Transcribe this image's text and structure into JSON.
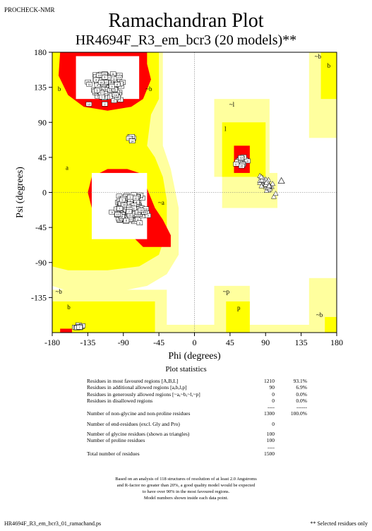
{
  "header": {
    "app_tag": "PROCHECK-NMR",
    "title": "Ramachandran Plot",
    "subtitle": "HR4694F_R3_em_bcr3 (20 models)**"
  },
  "colors": {
    "most_favoured": "#ff0000",
    "additional_allowed": "#ffff00",
    "generously_allowed": "#ffff9e",
    "background": "#ffffff"
  },
  "chart_data": {
    "type": "scatter",
    "xlabel": "Phi (degrees)",
    "ylabel": "Psi (degrees)",
    "xlim": [
      -180,
      180
    ],
    "ylim": [
      -180,
      180
    ],
    "x_ticks": [
      -180,
      -135,
      -90,
      -45,
      0,
      45,
      90,
      135,
      180
    ],
    "y_ticks": [
      180,
      135,
      90,
      45,
      0,
      -45,
      -90,
      -135
    ],
    "region_labels": [
      {
        "text": "b",
        "phi": -173,
        "psi": 130
      },
      {
        "text": "~b",
        "phi": -62,
        "psi": 130
      },
      {
        "text": "~b",
        "phi": 152,
        "psi": 172
      },
      {
        "text": "b",
        "phi": 168,
        "psi": 160
      },
      {
        "text": "~l",
        "phi": 44,
        "psi": 110
      },
      {
        "text": "l",
        "phi": 38,
        "psi": 79
      },
      {
        "text": "a",
        "phi": -163,
        "psi": 29
      },
      {
        "text": "~a",
        "phi": -46,
        "psi": -16
      },
      {
        "text": "~b",
        "phi": -176,
        "psi": -130
      },
      {
        "text": "b",
        "phi": -161,
        "psi": -150
      },
      {
        "text": "~p",
        "phi": 36,
        "psi": -130
      },
      {
        "text": "p",
        "phi": 54,
        "psi": -151
      },
      {
        "text": "~b",
        "phi": 154,
        "psi": -160
      }
    ],
    "clusters": [
      {
        "name": "beta",
        "center_phi": -112,
        "center_psi": 135,
        "spread_phi": 26,
        "spread_psi": 25,
        "count": 110
      },
      {
        "name": "alpha",
        "center_phi": -82,
        "center_psi": -22,
        "spread_phi": 26,
        "spread_psi": 22,
        "count": 150
      },
      {
        "name": "bridge",
        "center_phi": -80,
        "center_psi": 68,
        "spread_phi": 9,
        "spread_psi": 6,
        "count": 6
      },
      {
        "name": "left-handed",
        "center_phi": 60,
        "center_psi": 40,
        "spread_phi": 10,
        "spread_psi": 9,
        "count": 18
      },
      {
        "name": "bottom",
        "center_phi": -146,
        "center_psi": -172,
        "spread_phi": 10,
        "spread_psi": 3,
        "count": 10
      }
    ],
    "glycine_triangles": {
      "center_phi": 92,
      "center_psi": 10,
      "spread_phi": 14,
      "spread_psi": 12,
      "count": 40
    },
    "triangle_outlier": {
      "phi": 110,
      "psi": 15
    }
  },
  "statistics": {
    "title": "Plot statistics",
    "rows": [
      {
        "label": "Residues in most favoured regions  [A,B,L]",
        "count": "1210",
        "percent": "93.1%"
      },
      {
        "label": "Residues in additional allowed regions  [a,b,l,p]",
        "count": "90",
        "percent": "6.9%"
      },
      {
        "label": "Residues in generously allowed regions  [~a,~b,~l,~p]",
        "count": "0",
        "percent": "0.0%"
      },
      {
        "label": "Residues in disallowed regions",
        "count": "0",
        "percent": "0.0%"
      },
      {
        "label": "",
        "count": "----",
        "percent": "------"
      },
      {
        "label": "Number of non-glycine and non-proline residues",
        "count": "1300",
        "percent": "100.0%"
      },
      {
        "label": "",
        "count": "",
        "percent": ""
      },
      {
        "label": "Number of end-residues (excl. Gly and Pro)",
        "count": "0",
        "percent": ""
      },
      {
        "label": "",
        "count": "",
        "percent": ""
      },
      {
        "label": "Number of glycine residues (shown as triangles)",
        "count": "100",
        "percent": ""
      },
      {
        "label": "Number of proline residues",
        "count": "100",
        "percent": ""
      },
      {
        "label": "",
        "count": "----",
        "percent": ""
      },
      {
        "label": "Total number of residues",
        "count": "1500",
        "percent": ""
      }
    ]
  },
  "footnote": [
    "Based on an analysis of 118 structures of resolution of at least 2.0 Angstroms",
    "and R-factor no greater than 20%, a good quality model would be expected",
    "to have over 90% in the most favoured regions.",
    "Model numbers shown inside each data point."
  ],
  "footer": {
    "left": "HR4694F_R3_em_bcr3_01_ramachand.ps",
    "right": "** Selected residues only"
  }
}
